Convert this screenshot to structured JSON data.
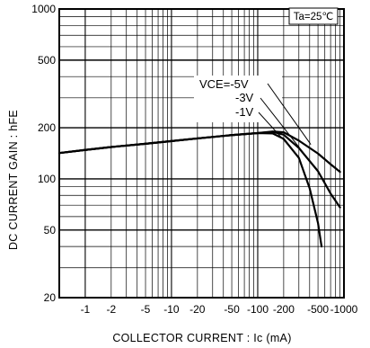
{
  "chart_data": {
    "type": "line",
    "title": "",
    "xlabel": "COLLECTOR CURRENT : Ic  (mA)",
    "ylabel": "DC CURRENT GAIN : hFE",
    "x_scale": "log",
    "y_scale": "log",
    "xlim": [
      -0.5,
      -1000
    ],
    "ylim": [
      20,
      1000
    ],
    "grid": true,
    "x_ticks": [
      -1,
      -2,
      -5,
      -10,
      -20,
      -50,
      -100,
      -200,
      -500,
      -1000
    ],
    "x_tick_labels": [
      "-1",
      "-2",
      "-5",
      "-10",
      "-20",
      "-50",
      "-100",
      "-200",
      "-500",
      "-1000"
    ],
    "y_ticks": [
      20,
      50,
      100,
      200,
      500,
      1000
    ],
    "y_tick_labels": [
      "20",
      "50",
      "100",
      "200",
      "500",
      "1000"
    ],
    "annotation": "Ta=25℃",
    "series": [
      {
        "name": "VCE=-5V",
        "label": "VCE=-5V",
        "x": [
          -0.5,
          -1,
          -2,
          -5,
          -10,
          -20,
          -50,
          -100,
          -150,
          -200,
          -300,
          -500,
          -700,
          -900
        ],
        "y": [
          142,
          148,
          154,
          161,
          167,
          173,
          181,
          186,
          190,
          188,
          168,
          141,
          122,
          110
        ]
      },
      {
        "name": "VCE=-3V",
        "label": "-3V",
        "x": [
          -0.5,
          -1,
          -2,
          -5,
          -10,
          -20,
          -50,
          -100,
          -150,
          -200,
          -300,
          -500,
          -700,
          -900
        ],
        "y": [
          142,
          148,
          154,
          161,
          167,
          173,
          181,
          186,
          189,
          182,
          152,
          111,
          82,
          68
        ]
      },
      {
        "name": "VCE=-1V",
        "label": "-1V",
        "x": [
          -0.5,
          -1,
          -2,
          -5,
          -10,
          -20,
          -50,
          -100,
          -150,
          -200,
          -300,
          -400,
          -500,
          -550
        ],
        "y": [
          142,
          148,
          154,
          161,
          167,
          173,
          181,
          186,
          185,
          172,
          133,
          88,
          55,
          40
        ]
      }
    ]
  }
}
